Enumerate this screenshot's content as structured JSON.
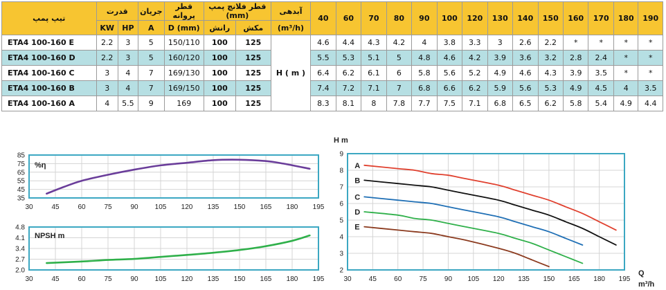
{
  "table": {
    "headers": {
      "model": "تیپ پمپ",
      "power": "قدرت",
      "current": "جریان",
      "impeller": "قطر پروانه",
      "flange": "قطر فلانچ پمپ (mm)",
      "flow": "آبدهی",
      "kw": "KW",
      "hp": "HP",
      "amp": "A",
      "impeller_unit": "D (mm)",
      "discharge": "رانش",
      "suction": "مکش",
      "flow_unit": "(m³/h)"
    },
    "head_label": "H ( m )",
    "flow_columns": [
      "40",
      "60",
      "70",
      "80",
      "90",
      "100",
      "120",
      "130",
      "140",
      "150",
      "160",
      "170",
      "180",
      "190"
    ],
    "rows": [
      {
        "model": "ETA4 100-160 E",
        "kw": "2.2",
        "hp": "3",
        "a": "5",
        "d": "150/110",
        "discharge": "100",
        "suction": "125",
        "heads": [
          "4.6",
          "4.4",
          "4.3",
          "4.2",
          "4",
          "3.8",
          "3.3",
          "3",
          "2.6",
          "2.2",
          "*",
          "*",
          "*",
          "*"
        ]
      },
      {
        "model": "ETA4 100-160 D",
        "kw": "2.2",
        "hp": "3",
        "a": "5",
        "d": "160/120",
        "discharge": "100",
        "suction": "125",
        "heads": [
          "5.5",
          "5.3",
          "5.1",
          "5",
          "4.8",
          "4.6",
          "4.2",
          "3.9",
          "3.6",
          "3.2",
          "2.8",
          "2.4",
          "*",
          "*"
        ]
      },
      {
        "model": "ETA4 100-160 C",
        "kw": "3",
        "hp": "4",
        "a": "7",
        "d": "169/130",
        "discharge": "100",
        "suction": "125",
        "heads": [
          "6.4",
          "6.2",
          "6.1",
          "6",
          "5.8",
          "5.6",
          "5.2",
          "4.9",
          "4.6",
          "4.3",
          "3.9",
          "3.5",
          "*",
          "*"
        ]
      },
      {
        "model": "ETA4 100-160 B",
        "kw": "3",
        "hp": "4",
        "a": "7",
        "d": "169/150",
        "discharge": "100",
        "suction": "125",
        "heads": [
          "7.4",
          "7.2",
          "7.1",
          "7",
          "6.8",
          "6.6",
          "6.2",
          "5.9",
          "5.6",
          "5.3",
          "4.9",
          "4.5",
          "4",
          "3.5"
        ]
      },
      {
        "model": "ETA4 100-160 A",
        "kw": "4",
        "hp": "5.5",
        "a": "9",
        "d": "169",
        "discharge": "100",
        "suction": "125",
        "heads": [
          "8.3",
          "8.1",
          "8",
          "7.8",
          "7.7",
          "7.5",
          "7.1",
          "6.8",
          "6.5",
          "6.2",
          "5.8",
          "5.4",
          "4.9",
          "4.4"
        ]
      }
    ]
  },
  "chart_data": [
    {
      "type": "line",
      "label": "%η",
      "x_ticks": [
        "30",
        "45",
        "60",
        "75",
        "90",
        "105",
        "120",
        "135",
        "150",
        "165",
        "180",
        "195"
      ],
      "y_ticks": [
        "35",
        "45",
        "55",
        "65",
        "75",
        "85"
      ],
      "xlim": [
        30,
        195
      ],
      "ylim": [
        35,
        85
      ],
      "series": [
        {
          "color": "#6a3d9a",
          "x": [
            40,
            50,
            60,
            75,
            90,
            105,
            120,
            135,
            150,
            165,
            175,
            190
          ],
          "y": [
            40,
            48,
            55,
            62,
            68,
            73,
            76,
            79,
            79.5,
            78,
            75,
            69
          ]
        }
      ]
    },
    {
      "type": "line",
      "label": "NPSH m",
      "x_ticks": [
        "30",
        "45",
        "60",
        "75",
        "90",
        "105",
        "120",
        "135",
        "150",
        "165",
        "180",
        "195"
      ],
      "y_ticks": [
        "2.0",
        "2.7",
        "3.4",
        "4.1",
        "4.8"
      ],
      "xlim": [
        30,
        195
      ],
      "ylim": [
        2.0,
        4.8
      ],
      "series": [
        {
          "color": "#2fb04a",
          "x": [
            40,
            60,
            75,
            90,
            105,
            120,
            135,
            150,
            165,
            180,
            190
          ],
          "y": [
            2.45,
            2.55,
            2.65,
            2.72,
            2.85,
            2.98,
            3.12,
            3.3,
            3.55,
            3.9,
            4.25
          ]
        }
      ]
    },
    {
      "type": "line",
      "ylabel": "H m",
      "xlabel": "Q",
      "xunit": "m³/h",
      "x_ticks": [
        "30",
        "45",
        "60",
        "75",
        "90",
        "105",
        "120",
        "135",
        "150",
        "165",
        "180",
        "195"
      ],
      "y_ticks": [
        "2",
        "3",
        "4",
        "5",
        "6",
        "7",
        "8",
        "9"
      ],
      "xlim": [
        30,
        195
      ],
      "ylim": [
        2,
        9
      ],
      "series": [
        {
          "name": "A",
          "color": "#e0402e",
          "x": [
            40,
            60,
            70,
            80,
            90,
            100,
            120,
            130,
            140,
            150,
            160,
            170,
            180,
            190
          ],
          "y": [
            8.3,
            8.1,
            8,
            7.8,
            7.7,
            7.5,
            7.1,
            6.8,
            6.5,
            6.2,
            5.8,
            5.4,
            4.9,
            4.4
          ]
        },
        {
          "name": "B",
          "color": "#111111",
          "x": [
            40,
            60,
            70,
            80,
            90,
            100,
            120,
            130,
            140,
            150,
            160,
            170,
            180,
            190
          ],
          "y": [
            7.4,
            7.2,
            7.1,
            7,
            6.8,
            6.6,
            6.2,
            5.9,
            5.6,
            5.3,
            4.9,
            4.5,
            4,
            3.5
          ]
        },
        {
          "name": "C",
          "color": "#1f6fb5",
          "x": [
            40,
            60,
            70,
            80,
            90,
            100,
            120,
            130,
            140,
            150,
            160,
            170
          ],
          "y": [
            6.4,
            6.2,
            6.1,
            6,
            5.8,
            5.6,
            5.2,
            4.9,
            4.6,
            4.3,
            3.9,
            3.5
          ]
        },
        {
          "name": "D",
          "color": "#2fb04a",
          "x": [
            40,
            60,
            70,
            80,
            90,
            100,
            120,
            130,
            140,
            150,
            160,
            170
          ],
          "y": [
            5.5,
            5.3,
            5.1,
            5,
            4.8,
            4.6,
            4.2,
            3.9,
            3.6,
            3.2,
            2.8,
            2.4
          ]
        },
        {
          "name": "E",
          "color": "#8b3a1e",
          "x": [
            40,
            60,
            70,
            80,
            90,
            100,
            120,
            130,
            140,
            150
          ],
          "y": [
            4.6,
            4.4,
            4.3,
            4.2,
            4,
            3.8,
            3.3,
            3,
            2.6,
            2.2
          ]
        }
      ]
    }
  ]
}
